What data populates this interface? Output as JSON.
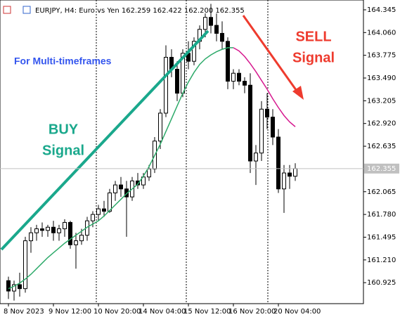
{
  "chart_data": {
    "type": "candlestick",
    "title": "EURJPY, H4:  Euro vs Yen  162.259 162.422 162.200 162.355",
    "categories": [
      "8 Nov 2023",
      null,
      null,
      null,
      null,
      null,
      null,
      null,
      "9 Nov 12:00",
      null,
      null,
      null,
      null,
      null,
      null,
      null,
      "10 Nov 20:00",
      null,
      null,
      null,
      null,
      null,
      null,
      null,
      "14 Nov 04:00",
      null,
      null,
      null,
      null,
      null,
      null,
      null,
      "15 Nov 12:00",
      null,
      null,
      null,
      null,
      null,
      null,
      null,
      "16 Nov 20:00",
      null,
      null,
      null,
      null,
      null,
      null,
      null,
      "20 Nov 04:00",
      null,
      null,
      null
    ],
    "open": [
      160.95,
      160.82,
      160.9,
      160.85,
      161.45,
      161.55,
      161.6,
      161.58,
      161.62,
      161.55,
      161.6,
      161.68,
      161.4,
      161.45,
      161.52,
      161.7,
      161.78,
      161.85,
      161.82,
      162.05,
      162.15,
      162.1,
      162.0,
      162.2,
      162.15,
      162.25,
      162.35,
      162.7,
      163.05,
      163.75,
      163.6,
      163.3,
      163.8,
      163.7,
      163.95,
      164.1,
      164.25,
      164.15,
      164.05,
      163.95,
      163.45,
      163.55,
      163.45,
      163.4,
      162.45,
      162.55,
      163.1,
      163.0,
      162.75,
      162.1,
      162.3,
      162.259
    ],
    "high": [
      161.0,
      160.95,
      161.05,
      161.5,
      161.62,
      161.65,
      161.68,
      161.65,
      161.7,
      161.65,
      161.72,
      161.7,
      161.55,
      161.6,
      161.75,
      161.82,
      161.9,
      161.95,
      162.1,
      162.2,
      162.25,
      162.2,
      162.25,
      162.3,
      162.3,
      162.4,
      162.75,
      163.1,
      163.9,
      163.85,
      163.7,
      163.85,
      163.95,
      164.0,
      164.15,
      164.3,
      164.42,
      164.3,
      164.2,
      164.0,
      163.6,
      163.6,
      163.5,
      163.55,
      162.65,
      163.2,
      163.3,
      163.1,
      162.85,
      162.4,
      162.4,
      162.422
    ],
    "low": [
      160.72,
      160.7,
      160.75,
      160.8,
      161.3,
      161.45,
      161.5,
      161.5,
      161.45,
      161.45,
      161.5,
      161.35,
      161.1,
      161.4,
      161.45,
      161.62,
      161.7,
      161.75,
      161.8,
      161.95,
      162.0,
      161.5,
      161.95,
      162.1,
      162.1,
      162.2,
      162.3,
      162.6,
      163.0,
      163.5,
      163.2,
      163.25,
      163.6,
      163.65,
      163.85,
      164.0,
      164.05,
      163.95,
      163.85,
      163.35,
      163.35,
      163.4,
      163.3,
      162.3,
      162.15,
      162.45,
      162.85,
      162.65,
      162.05,
      161.8,
      162.1,
      162.2
    ],
    "close": [
      160.82,
      160.9,
      160.85,
      161.45,
      161.55,
      161.6,
      161.58,
      161.62,
      161.55,
      161.6,
      161.68,
      161.4,
      161.45,
      161.52,
      161.7,
      161.78,
      161.85,
      161.82,
      162.05,
      162.15,
      162.1,
      162.0,
      162.2,
      162.15,
      162.25,
      162.35,
      162.7,
      163.05,
      163.75,
      163.6,
      163.3,
      163.8,
      163.7,
      163.95,
      164.1,
      164.25,
      164.15,
      164.05,
      163.95,
      163.45,
      163.55,
      163.45,
      163.4,
      162.45,
      162.55,
      163.1,
      163.0,
      162.75,
      162.1,
      162.3,
      162.259,
      162.355
    ],
    "bull_color": "#ffffff",
    "bear_color": "#000000",
    "series": [
      {
        "color": "#2eaa6a",
        "values": [
          160.85,
          160.88,
          160.92,
          160.97,
          161.03,
          161.1,
          161.17,
          161.24,
          161.3,
          161.36,
          161.42,
          161.47,
          161.52,
          161.57,
          161.62,
          161.66,
          161.7,
          161.76,
          161.83,
          161.9,
          161.97,
          162.04,
          162.1,
          162.16,
          162.26,
          162.38,
          162.52,
          162.66,
          162.82,
          162.98,
          163.14,
          163.3,
          163.44,
          163.56,
          163.66,
          163.73,
          163.78,
          163.82,
          163.85,
          163.87,
          163.87,
          null,
          null,
          null,
          null,
          null,
          null,
          null,
          null,
          null,
          null,
          null
        ]
      },
      {
        "color": "#d6198f",
        "values": [
          null,
          null,
          null,
          null,
          null,
          null,
          null,
          null,
          null,
          null,
          null,
          null,
          null,
          null,
          null,
          null,
          null,
          null,
          null,
          null,
          null,
          null,
          null,
          null,
          null,
          null,
          null,
          null,
          null,
          null,
          null,
          null,
          null,
          null,
          null,
          null,
          null,
          null,
          null,
          null,
          163.87,
          163.83,
          163.76,
          163.67,
          163.57,
          163.46,
          163.35,
          163.23,
          163.12,
          163.02,
          162.94,
          162.88
        ]
      }
    ],
    "ylim": [
      160.662,
      164.468
    ],
    "yticks": [
      164.345,
      {
        "value": 164.06,
        "label": "164.060"
      },
      163.775,
      {
        "value": 163.49,
        "label": "163.490"
      },
      163.205,
      {
        "value": 162.92,
        "label": "162.920"
      },
      162.635,
      162.065,
      {
        "value": 161.78,
        "label": "161.780"
      },
      161.495,
      {
        "value": 161.21,
        "label": "161.210"
      },
      160.925
    ],
    "current_price": 162.355,
    "annotations": [
      "For Multi-timeframes",
      "BUY",
      "Signal",
      "SELL",
      "Signal"
    ]
  }
}
